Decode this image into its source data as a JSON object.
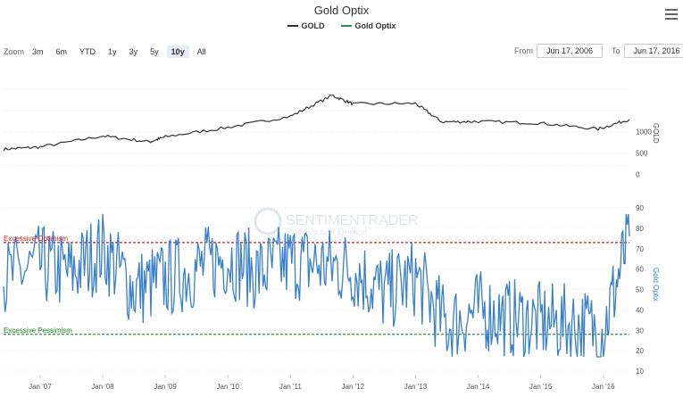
{
  "header": {
    "title": "Gold Optix",
    "menu_icon": "hamburger-icon"
  },
  "legend": [
    {
      "label": "GOLD",
      "color": "#333333"
    },
    {
      "label": "Gold Optix",
      "color": "#2e8b57"
    }
  ],
  "range_selector": {
    "zoom_label": "Zoom",
    "buttons": [
      "3m",
      "6m",
      "YTD",
      "1y",
      "3y",
      "5y",
      "10y",
      "All"
    ],
    "active": "10y",
    "from_label": "From",
    "from_value": "Jun 17, 2006",
    "to_label": "To",
    "to_value": "Jun 17, 2016"
  },
  "watermark": {
    "brand": "SENTIMENTRADER",
    "tagline": "Analysis over Emotion"
  },
  "colors": {
    "gold_line": "#333333",
    "optix_line": "#3a7fc9",
    "optimism": "#cc2222",
    "pessimism": "#1f8a1f",
    "grid": "#e6e6e6"
  },
  "chart_data": [
    {
      "type": "line",
      "name": "GOLD",
      "ylabel": "GOLD",
      "yticks": [
        0,
        500,
        1000
      ],
      "ylim": [
        -200,
        2100
      ],
      "x": [
        "Jun 2006",
        "Jan 2007",
        "Jan 2008",
        "Oct 2008",
        "Jan 2009",
        "Jan 2010",
        "Jan 2011",
        "Sep 2011",
        "Jan 2012",
        "Jan 2013",
        "Jun 2013",
        "Jan 2014",
        "Jan 2015",
        "Dec 2015",
        "Jun 2016"
      ],
      "values": [
        590,
        640,
        900,
        760,
        880,
        1100,
        1360,
        1850,
        1650,
        1660,
        1230,
        1240,
        1200,
        1060,
        1290
      ]
    },
    {
      "type": "line",
      "name": "Gold Optix",
      "ylabel": "Gold Optix",
      "yticks": [
        10,
        20,
        30,
        40,
        50,
        60,
        70,
        80,
        90
      ],
      "ylim": [
        10,
        90
      ],
      "reference_lines": [
        {
          "label": "Excessive Optimism",
          "value": 73
        },
        {
          "label": "Excessive Pessimism",
          "value": 28
        }
      ],
      "x_tick_labels": [
        "Jan '07",
        "Jan '08",
        "Jan '09",
        "Jan '10",
        "Jan '11",
        "Jan '12",
        "Jan '13",
        "Jan '14",
        "Jan '15",
        "Jan '16"
      ],
      "x": [
        "Jun 2006",
        "Jan 2007",
        "Jul 2007",
        "Jan 2008",
        "Jul 2008",
        "Jan 2009",
        "Jul 2009",
        "Jan 2010",
        "Jul 2010",
        "Jan 2011",
        "Jul 2011",
        "Jan 2012",
        "Jul 2012",
        "Jan 2013",
        "Jul 2013",
        "Jan 2014",
        "Jul 2014",
        "Jan 2015",
        "Jul 2015",
        "Jan 2016",
        "Jun 2016"
      ],
      "values": [
        55,
        62,
        58,
        70,
        50,
        55,
        60,
        66,
        58,
        64,
        62,
        60,
        48,
        56,
        32,
        40,
        36,
        34,
        33,
        30,
        76
      ]
    }
  ]
}
